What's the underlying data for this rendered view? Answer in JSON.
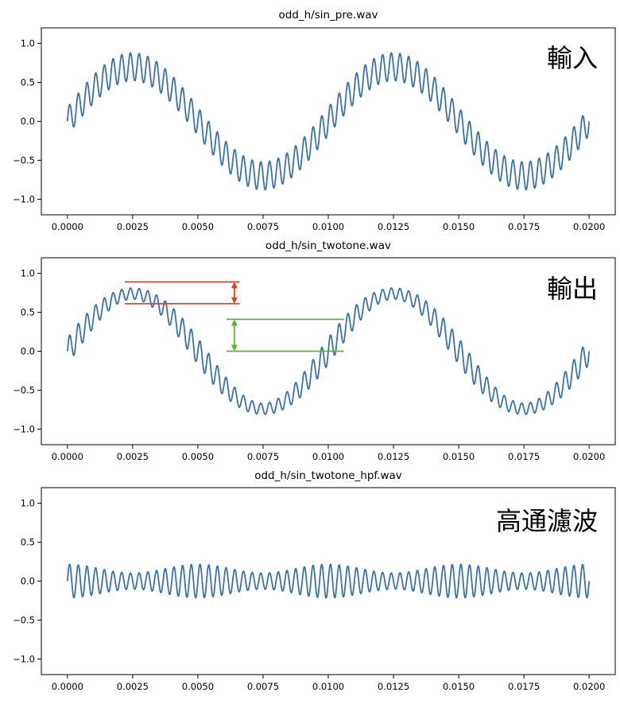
{
  "figure": {
    "line_color": "#3a72a8"
  },
  "chart_data": [
    {
      "type": "line",
      "title": "odd_h/sin_pre.wav",
      "annotation": "輸入",
      "xlim": [
        -0.001,
        0.021
      ],
      "ylim": [
        -1.2,
        1.2
      ],
      "xticks": [
        0.0,
        0.0025,
        0.005,
        0.0075,
        0.01,
        0.0125,
        0.015,
        0.0175,
        0.02
      ],
      "xtick_labels": [
        "0.0000",
        "0.0025",
        "0.0050",
        "0.0075",
        "0.0100",
        "0.0125",
        "0.0150",
        "0.0175",
        "0.0200"
      ],
      "yticks": [
        -1.0,
        -0.5,
        0.0,
        0.5,
        1.0
      ],
      "ytick_labels": [
        "−1.0",
        "−0.5",
        "0.0",
        "0.5",
        "1.0"
      ],
      "series": [
        {
          "x_range": [
            0.0,
            0.02
          ],
          "components": [
            {
              "amplitude": 0.7,
              "frequency_hz": 100
            },
            {
              "amplitude": 0.18,
              "frequency_hz": 3000
            }
          ]
        }
      ],
      "markers": []
    },
    {
      "type": "line",
      "title": "odd_h/sin_twotone.wav",
      "annotation": "輸出",
      "xlim": [
        -0.001,
        0.021
      ],
      "ylim": [
        -1.2,
        1.2
      ],
      "xticks": [
        0.0,
        0.0025,
        0.005,
        0.0075,
        0.01,
        0.0125,
        0.015,
        0.0175,
        0.02
      ],
      "xtick_labels": [
        "0.0000",
        "0.0025",
        "0.0050",
        "0.0075",
        "0.0100",
        "0.0125",
        "0.0150",
        "0.0175",
        "0.0200"
      ],
      "yticks": [
        -1.0,
        -0.5,
        0.0,
        0.5,
        1.0
      ],
      "ytick_labels": [
        "−1.0",
        "−0.5",
        "0.0",
        "0.5",
        "1.0"
      ],
      "series": [
        {
          "x_range": [
            0.0,
            0.02
          ],
          "components": [
            {
              "amplitude": 0.74,
              "frequency_hz": 100
            },
            {
              "amplitude": 0.12,
              "frequency_hz": 3000,
              "envelope_mod": 0.4
            }
          ]
        }
      ],
      "markers": [
        {
          "color": "#d9412b",
          "x": [
            0.0022,
            0.0066
          ],
          "y_upper": 0.89,
          "y_lower": 0.61,
          "arrow_x": 0.0064
        },
        {
          "color": "#5cb336",
          "x": [
            0.0061,
            0.0106
          ],
          "y_upper": 0.41,
          "y_lower": 0.0,
          "arrow_x": 0.0064
        }
      ]
    },
    {
      "type": "line",
      "title": "odd_h/sin_twotone_hpf.wav",
      "annotation": "高通濾波",
      "xlim": [
        -0.001,
        0.021
      ],
      "ylim": [
        -1.2,
        1.2
      ],
      "xticks": [
        0.0,
        0.0025,
        0.005,
        0.0075,
        0.01,
        0.0125,
        0.015,
        0.0175,
        0.02
      ],
      "xtick_labels": [
        "0.0000",
        "0.0025",
        "0.0050",
        "0.0075",
        "0.0100",
        "0.0125",
        "0.0150",
        "0.0175",
        "0.0200"
      ],
      "yticks": [
        -1.0,
        -0.5,
        0.0,
        0.5,
        1.0
      ],
      "ytick_labels": [
        "−1.0",
        "−0.5",
        "0.0",
        "0.5",
        "1.0"
      ],
      "series": [
        {
          "x_range": [
            0.0,
            0.02
          ],
          "components": [
            {
              "amplitude": 0.16,
              "frequency_hz": 3000,
              "envelope_mod": 0.35
            }
          ]
        }
      ],
      "markers": []
    }
  ]
}
